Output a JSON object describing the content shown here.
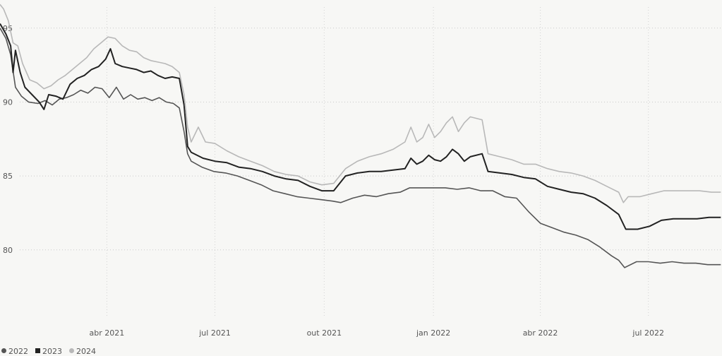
{
  "chart_data": {
    "type": "line",
    "title": "",
    "xlabel": "",
    "ylabel": "",
    "x_ticks": [
      {
        "date": "2021-04-01",
        "label": "abr 2021"
      },
      {
        "date": "2021-07-01",
        "label": "jul 2021"
      },
      {
        "date": "2021-10-01",
        "label": "out 2021"
      },
      {
        "date": "2022-01-01",
        "label": "jan 2022"
      },
      {
        "date": "2022-04-01",
        "label": "abr 2022"
      },
      {
        "date": "2022-07-01",
        "label": "jul 2022"
      }
    ],
    "y_ticks": [
      80,
      85,
      90,
      95
    ],
    "xlim": [
      "2021-01-01",
      "2022-09-01"
    ],
    "ylim": [
      75.5,
      96.9
    ],
    "grid": true,
    "legend_position": "bottom-left",
    "series": [
      {
        "name": "2022",
        "color": "#555555",
        "points": [
          [
            "2021-01-01",
            95.0
          ],
          [
            "2021-01-06",
            94.3
          ],
          [
            "2021-01-10",
            93.2
          ],
          [
            "2021-01-14",
            91.0
          ],
          [
            "2021-01-19",
            90.4
          ],
          [
            "2021-01-25",
            90.0
          ],
          [
            "2021-02-02",
            89.9
          ],
          [
            "2021-02-08",
            90.1
          ],
          [
            "2021-02-14",
            89.8
          ],
          [
            "2021-02-20",
            90.2
          ],
          [
            "2021-02-26",
            90.3
          ],
          [
            "2021-03-04",
            90.5
          ],
          [
            "2021-03-10",
            90.8
          ],
          [
            "2021-03-16",
            90.6
          ],
          [
            "2021-03-22",
            91.0
          ],
          [
            "2021-03-28",
            90.9
          ],
          [
            "2021-04-03",
            90.3
          ],
          [
            "2021-04-09",
            91.0
          ],
          [
            "2021-04-15",
            90.2
          ],
          [
            "2021-04-21",
            90.5
          ],
          [
            "2021-04-27",
            90.2
          ],
          [
            "2021-05-03",
            90.3
          ],
          [
            "2021-05-09",
            90.1
          ],
          [
            "2021-05-15",
            90.3
          ],
          [
            "2021-05-21",
            90.0
          ],
          [
            "2021-05-27",
            89.9
          ],
          [
            "2021-06-01",
            89.6
          ],
          [
            "2021-06-05",
            88.0
          ],
          [
            "2021-06-08",
            86.5
          ],
          [
            "2021-06-11",
            86.0
          ],
          [
            "2021-06-20",
            85.6
          ],
          [
            "2021-06-30",
            85.3
          ],
          [
            "2021-07-10",
            85.2
          ],
          [
            "2021-07-20",
            85.0
          ],
          [
            "2021-07-30",
            84.7
          ],
          [
            "2021-08-09",
            84.4
          ],
          [
            "2021-08-19",
            84.0
          ],
          [
            "2021-08-29",
            83.8
          ],
          [
            "2021-09-08",
            83.6
          ],
          [
            "2021-09-18",
            83.5
          ],
          [
            "2021-09-28",
            83.4
          ],
          [
            "2021-10-08",
            83.3
          ],
          [
            "2021-10-15",
            83.2
          ],
          [
            "2021-10-25",
            83.5
          ],
          [
            "2021-11-04",
            83.7
          ],
          [
            "2021-11-14",
            83.6
          ],
          [
            "2021-11-24",
            83.8
          ],
          [
            "2021-12-04",
            83.9
          ],
          [
            "2021-12-12",
            84.2
          ],
          [
            "2021-12-22",
            84.2
          ],
          [
            "2022-01-01",
            84.2
          ],
          [
            "2022-01-11",
            84.2
          ],
          [
            "2022-01-21",
            84.1
          ],
          [
            "2022-01-31",
            84.2
          ],
          [
            "2022-02-10",
            84.0
          ],
          [
            "2022-02-20",
            84.0
          ],
          [
            "2022-03-02",
            83.6
          ],
          [
            "2022-03-12",
            83.5
          ],
          [
            "2022-03-22",
            82.6
          ],
          [
            "2022-04-01",
            81.8
          ],
          [
            "2022-04-11",
            81.5
          ],
          [
            "2022-04-21",
            81.2
          ],
          [
            "2022-05-01",
            81.0
          ],
          [
            "2022-05-11",
            80.7
          ],
          [
            "2022-05-21",
            80.2
          ],
          [
            "2022-05-31",
            79.6
          ],
          [
            "2022-06-06",
            79.3
          ],
          [
            "2022-06-11",
            78.8
          ],
          [
            "2022-06-21",
            79.2
          ],
          [
            "2022-07-01",
            79.2
          ],
          [
            "2022-07-11",
            79.1
          ],
          [
            "2022-07-21",
            79.2
          ],
          [
            "2022-07-31",
            79.1
          ],
          [
            "2022-08-10",
            79.1
          ],
          [
            "2022-08-20",
            79.0
          ],
          [
            "2022-08-31",
            79.0
          ]
        ]
      },
      {
        "name": "2023",
        "color": "#222222",
        "points": [
          [
            "2021-01-01",
            95.3
          ],
          [
            "2021-01-06",
            94.6
          ],
          [
            "2021-01-10",
            93.8
          ],
          [
            "2021-01-12",
            92.0
          ],
          [
            "2021-01-14",
            93.5
          ],
          [
            "2021-01-18",
            92.0
          ],
          [
            "2021-01-22",
            91.0
          ],
          [
            "2021-01-28",
            90.5
          ],
          [
            "2021-02-03",
            90.0
          ],
          [
            "2021-02-07",
            89.5
          ],
          [
            "2021-02-11",
            90.5
          ],
          [
            "2021-02-17",
            90.4
          ],
          [
            "2021-02-23",
            90.2
          ],
          [
            "2021-03-01",
            91.2
          ],
          [
            "2021-03-07",
            91.6
          ],
          [
            "2021-03-13",
            91.8
          ],
          [
            "2021-03-19",
            92.2
          ],
          [
            "2021-03-25",
            92.4
          ],
          [
            "2021-03-31",
            92.9
          ],
          [
            "2021-04-04",
            93.6
          ],
          [
            "2021-04-08",
            92.6
          ],
          [
            "2021-04-14",
            92.4
          ],
          [
            "2021-04-20",
            92.3
          ],
          [
            "2021-04-26",
            92.2
          ],
          [
            "2021-05-02",
            92.0
          ],
          [
            "2021-05-08",
            92.1
          ],
          [
            "2021-05-14",
            91.8
          ],
          [
            "2021-05-20",
            91.6
          ],
          [
            "2021-05-26",
            91.7
          ],
          [
            "2021-06-01",
            91.6
          ],
          [
            "2021-06-05",
            89.8
          ],
          [
            "2021-06-08",
            87.0
          ],
          [
            "2021-06-11",
            86.6
          ],
          [
            "2021-06-21",
            86.2
          ],
          [
            "2021-07-01",
            86.0
          ],
          [
            "2021-07-11",
            85.9
          ],
          [
            "2021-07-21",
            85.6
          ],
          [
            "2021-07-31",
            85.5
          ],
          [
            "2021-08-10",
            85.3
          ],
          [
            "2021-08-20",
            85.0
          ],
          [
            "2021-08-30",
            84.8
          ],
          [
            "2021-09-09",
            84.7
          ],
          [
            "2021-09-19",
            84.3
          ],
          [
            "2021-09-29",
            84.0
          ],
          [
            "2021-10-09",
            84.0
          ],
          [
            "2021-10-19",
            85.0
          ],
          [
            "2021-10-29",
            85.2
          ],
          [
            "2021-11-08",
            85.3
          ],
          [
            "2021-11-18",
            85.3
          ],
          [
            "2021-11-28",
            85.4
          ],
          [
            "2021-12-08",
            85.5
          ],
          [
            "2021-12-13",
            86.2
          ],
          [
            "2021-12-18",
            85.8
          ],
          [
            "2021-12-23",
            86.0
          ],
          [
            "2021-12-28",
            86.4
          ],
          [
            "2022-01-02",
            86.1
          ],
          [
            "2022-01-07",
            86.0
          ],
          [
            "2022-01-12",
            86.3
          ],
          [
            "2022-01-17",
            86.8
          ],
          [
            "2022-01-22",
            86.5
          ],
          [
            "2022-01-27",
            86.0
          ],
          [
            "2022-02-01",
            86.3
          ],
          [
            "2022-02-11",
            86.5
          ],
          [
            "2022-02-16",
            85.3
          ],
          [
            "2022-02-26",
            85.2
          ],
          [
            "2022-03-08",
            85.1
          ],
          [
            "2022-03-18",
            84.9
          ],
          [
            "2022-03-28",
            84.8
          ],
          [
            "2022-04-07",
            84.3
          ],
          [
            "2022-04-17",
            84.1
          ],
          [
            "2022-04-27",
            83.9
          ],
          [
            "2022-05-07",
            83.8
          ],
          [
            "2022-05-17",
            83.5
          ],
          [
            "2022-05-27",
            83.0
          ],
          [
            "2022-06-06",
            82.4
          ],
          [
            "2022-06-12",
            81.4
          ],
          [
            "2022-06-22",
            81.4
          ],
          [
            "2022-07-02",
            81.6
          ],
          [
            "2022-07-12",
            82.0
          ],
          [
            "2022-07-22",
            82.1
          ],
          [
            "2022-08-01",
            82.1
          ],
          [
            "2022-08-11",
            82.1
          ],
          [
            "2022-08-21",
            82.2
          ],
          [
            "2022-08-31",
            82.2
          ]
        ]
      },
      {
        "name": "2024",
        "color": "#b8b8b8",
        "points": [
          [
            "2021-01-01",
            96.6
          ],
          [
            "2021-01-04",
            96.3
          ],
          [
            "2021-01-08",
            95.5
          ],
          [
            "2021-01-12",
            94.0
          ],
          [
            "2021-01-16",
            93.8
          ],
          [
            "2021-01-20",
            92.6
          ],
          [
            "2021-01-26",
            91.5
          ],
          [
            "2021-02-01",
            91.3
          ],
          [
            "2021-02-07",
            90.9
          ],
          [
            "2021-02-13",
            91.1
          ],
          [
            "2021-02-19",
            91.5
          ],
          [
            "2021-02-25",
            91.8
          ],
          [
            "2021-03-03",
            92.2
          ],
          [
            "2021-03-09",
            92.6
          ],
          [
            "2021-03-15",
            93.0
          ],
          [
            "2021-03-21",
            93.6
          ],
          [
            "2021-03-27",
            94.0
          ],
          [
            "2021-04-02",
            94.4
          ],
          [
            "2021-04-08",
            94.3
          ],
          [
            "2021-04-14",
            93.8
          ],
          [
            "2021-04-20",
            93.5
          ],
          [
            "2021-04-26",
            93.4
          ],
          [
            "2021-05-02",
            93.0
          ],
          [
            "2021-05-08",
            92.8
          ],
          [
            "2021-05-14",
            92.7
          ],
          [
            "2021-05-20",
            92.6
          ],
          [
            "2021-05-26",
            92.4
          ],
          [
            "2021-06-01",
            92.0
          ],
          [
            "2021-06-05",
            90.5
          ],
          [
            "2021-06-08",
            88.3
          ],
          [
            "2021-06-11",
            87.3
          ],
          [
            "2021-06-17",
            88.3
          ],
          [
            "2021-06-23",
            87.3
          ],
          [
            "2021-07-01",
            87.2
          ],
          [
            "2021-07-11",
            86.7
          ],
          [
            "2021-07-21",
            86.3
          ],
          [
            "2021-07-31",
            86.0
          ],
          [
            "2021-08-10",
            85.7
          ],
          [
            "2021-08-20",
            85.3
          ],
          [
            "2021-08-30",
            85.1
          ],
          [
            "2021-09-09",
            85.0
          ],
          [
            "2021-09-19",
            84.6
          ],
          [
            "2021-09-29",
            84.4
          ],
          [
            "2021-10-09",
            84.5
          ],
          [
            "2021-10-19",
            85.5
          ],
          [
            "2021-10-29",
            86.0
          ],
          [
            "2021-11-08",
            86.3
          ],
          [
            "2021-11-18",
            86.5
          ],
          [
            "2021-11-28",
            86.8
          ],
          [
            "2021-12-08",
            87.3
          ],
          [
            "2021-12-13",
            88.3
          ],
          [
            "2021-12-18",
            87.3
          ],
          [
            "2021-12-23",
            87.6
          ],
          [
            "2021-12-28",
            88.5
          ],
          [
            "2022-01-02",
            87.6
          ],
          [
            "2022-01-07",
            88.0
          ],
          [
            "2022-01-12",
            88.6
          ],
          [
            "2022-01-17",
            89.0
          ],
          [
            "2022-01-22",
            88.0
          ],
          [
            "2022-01-27",
            88.6
          ],
          [
            "2022-02-01",
            89.0
          ],
          [
            "2022-02-11",
            88.8
          ],
          [
            "2022-02-16",
            86.5
          ],
          [
            "2022-02-26",
            86.3
          ],
          [
            "2022-03-08",
            86.1
          ],
          [
            "2022-03-18",
            85.8
          ],
          [
            "2022-03-28",
            85.8
          ],
          [
            "2022-04-07",
            85.5
          ],
          [
            "2022-04-17",
            85.3
          ],
          [
            "2022-04-27",
            85.2
          ],
          [
            "2022-05-07",
            85.0
          ],
          [
            "2022-05-17",
            84.7
          ],
          [
            "2022-05-27",
            84.3
          ],
          [
            "2022-06-06",
            83.9
          ],
          [
            "2022-06-10",
            83.2
          ],
          [
            "2022-06-14",
            83.6
          ],
          [
            "2022-06-24",
            83.6
          ],
          [
            "2022-07-04",
            83.8
          ],
          [
            "2022-07-14",
            84.0
          ],
          [
            "2022-07-24",
            84.0
          ],
          [
            "2022-08-03",
            84.0
          ],
          [
            "2022-08-13",
            84.0
          ],
          [
            "2022-08-23",
            83.9
          ],
          [
            "2022-08-31",
            83.9
          ]
        ]
      }
    ]
  }
}
